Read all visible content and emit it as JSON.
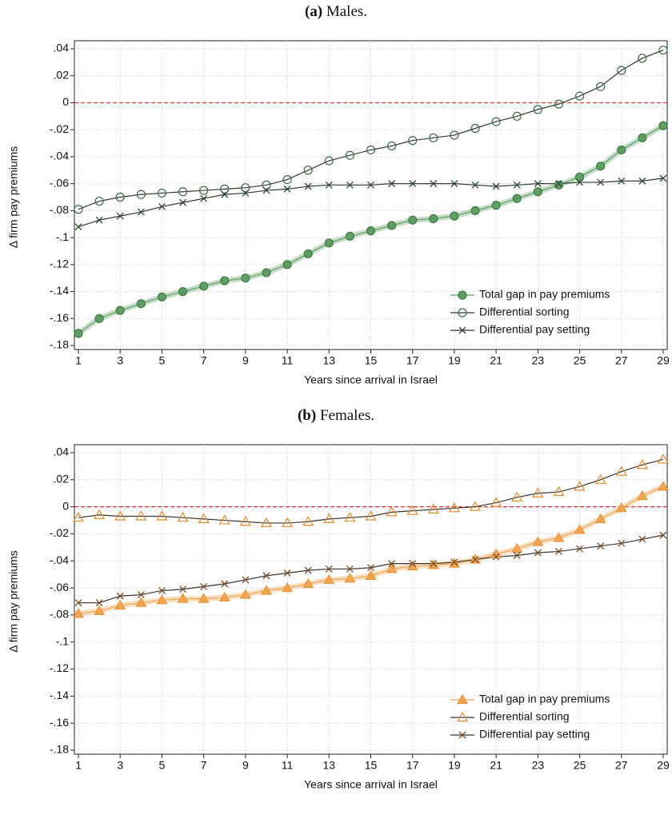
{
  "chart_data": [
    {
      "type": "line",
      "panel_label": "(a)",
      "title": "Males.",
      "x_label": "Years since arrival in Israel",
      "y_label": "Δ firm pay premiums",
      "x": [
        1,
        2,
        3,
        4,
        5,
        6,
        7,
        8,
        9,
        10,
        11,
        12,
        13,
        14,
        15,
        16,
        17,
        18,
        19,
        20,
        21,
        22,
        23,
        24,
        25,
        26,
        27,
        28,
        29
      ],
      "xlim": [
        1,
        29
      ],
      "xticks": [
        1,
        3,
        5,
        7,
        9,
        11,
        13,
        15,
        17,
        19,
        21,
        23,
        25,
        27,
        29
      ],
      "ylim": [
        -0.18,
        0.04
      ],
      "yticks": [
        {
          "value": 0.04,
          "label": ".04"
        },
        {
          "value": 0.02,
          "label": ".02"
        },
        0,
        {
          "value": -0.02,
          "label": "-.02"
        },
        {
          "value": -0.04,
          "label": "-.04"
        },
        {
          "value": -0.06,
          "label": "-.06"
        },
        {
          "value": -0.08,
          "label": "-.08"
        },
        {
          "value": -0.1,
          "label": "-.1"
        },
        {
          "value": -0.12,
          "label": "-.12"
        },
        {
          "value": -0.14,
          "label": "-.14"
        },
        {
          "value": -0.16,
          "label": "-.16"
        },
        {
          "value": -0.18,
          "label": "-.18"
        }
      ],
      "grid": true,
      "reference_line": 0,
      "reference_color": "#e0312b",
      "legend": "lower right",
      "series": [
        {
          "name": "Total gap in pay premiums",
          "color": "#5f9e63",
          "line_color": "#5f9e63",
          "marker": "circle",
          "filled": true,
          "band": true,
          "values": [
            -0.171,
            -0.16,
            -0.154,
            -0.149,
            -0.144,
            -0.14,
            -0.136,
            -0.132,
            -0.13,
            -0.126,
            -0.12,
            -0.112,
            -0.104,
            -0.099,
            -0.095,
            -0.091,
            -0.087,
            -0.086,
            -0.084,
            -0.08,
            -0.076,
            -0.071,
            -0.066,
            -0.061,
            -0.055,
            -0.047,
            -0.035,
            -0.026,
            -0.017
          ]
        },
        {
          "name": "Differential sorting",
          "color": "#3d6b40",
          "line_color": "#2f3a30",
          "marker": "circle",
          "filled": false,
          "band": false,
          "values": [
            -0.079,
            -0.073,
            -0.07,
            -0.068,
            -0.067,
            -0.066,
            -0.065,
            -0.064,
            -0.063,
            -0.061,
            -0.057,
            -0.05,
            -0.043,
            -0.039,
            -0.035,
            -0.032,
            -0.028,
            -0.026,
            -0.024,
            -0.019,
            -0.014,
            -0.01,
            -0.005,
            -0.001,
            0.005,
            0.012,
            0.024,
            0.033,
            0.039
          ]
        },
        {
          "name": "Differential pay setting",
          "color": "#2f4a33",
          "line_color": "#2f3a30",
          "marker": "x",
          "filled": false,
          "band": false,
          "values": [
            -0.092,
            -0.087,
            -0.084,
            -0.081,
            -0.077,
            -0.074,
            -0.071,
            -0.068,
            -0.067,
            -0.065,
            -0.064,
            -0.062,
            -0.061,
            -0.061,
            -0.061,
            -0.06,
            -0.06,
            -0.06,
            -0.06,
            -0.061,
            -0.062,
            -0.061,
            -0.06,
            -0.06,
            -0.059,
            -0.059,
            -0.058,
            -0.058,
            -0.056
          ]
        }
      ]
    },
    {
      "type": "line",
      "panel_label": "(b)",
      "title": "Females.",
      "x_label": "Years since arrival in Israel",
      "y_label": "Δ firm pay premiums",
      "x": [
        1,
        2,
        3,
        4,
        5,
        6,
        7,
        8,
        9,
        10,
        11,
        12,
        13,
        14,
        15,
        16,
        17,
        18,
        19,
        20,
        21,
        22,
        23,
        24,
        25,
        26,
        27,
        28,
        29
      ],
      "xlim": [
        1,
        29
      ],
      "xticks": [
        1,
        3,
        5,
        7,
        9,
        11,
        13,
        15,
        17,
        19,
        21,
        23,
        25,
        27,
        29
      ],
      "ylim": [
        -0.18,
        0.04
      ],
      "yticks": [
        {
          "value": 0.04,
          "label": ".04"
        },
        {
          "value": 0.02,
          "label": ".02"
        },
        0,
        {
          "value": -0.02,
          "label": "-.02"
        },
        {
          "value": -0.04,
          "label": "-.04"
        },
        {
          "value": -0.06,
          "label": "-.06"
        },
        {
          "value": -0.08,
          "label": "-.08"
        },
        {
          "value": -0.1,
          "label": "-.1"
        },
        {
          "value": -0.12,
          "label": "-.12"
        },
        {
          "value": -0.14,
          "label": "-.14"
        },
        {
          "value": -0.16,
          "label": "-.16"
        },
        {
          "value": -0.18,
          "label": "-.18"
        }
      ],
      "grid": true,
      "reference_line": 0,
      "reference_color": "#e0312b",
      "legend": "lower right",
      "series": [
        {
          "name": "Total gap in pay premiums",
          "color": "#f0a552",
          "line_color": "#f0a552",
          "marker": "triangle",
          "filled": true,
          "band": true,
          "values": [
            -0.079,
            -0.077,
            -0.073,
            -0.071,
            -0.069,
            -0.068,
            -0.068,
            -0.067,
            -0.065,
            -0.062,
            -0.06,
            -0.057,
            -0.054,
            -0.053,
            -0.051,
            -0.046,
            -0.044,
            -0.043,
            -0.042,
            -0.039,
            -0.035,
            -0.031,
            -0.026,
            -0.023,
            -0.017,
            -0.009,
            -0.001,
            0.008,
            0.015
          ]
        },
        {
          "name": "Differential sorting",
          "color": "#e08a2a",
          "line_color": "#3a3330",
          "marker": "triangle",
          "filled": false,
          "band": false,
          "values": [
            -0.008,
            -0.006,
            -0.007,
            -0.007,
            -0.007,
            -0.008,
            -0.009,
            -0.01,
            -0.011,
            -0.012,
            -0.012,
            -0.011,
            -0.009,
            -0.008,
            -0.007,
            -0.004,
            -0.003,
            -0.002,
            -0.001,
            0.0,
            0.003,
            0.007,
            0.01,
            0.011,
            0.015,
            0.02,
            0.026,
            0.031,
            0.035
          ]
        },
        {
          "name": "Differential pay setting",
          "color": "#7a4a22",
          "line_color": "#3a3330",
          "marker": "x",
          "filled": false,
          "band": false,
          "values": [
            -0.071,
            -0.071,
            -0.066,
            -0.065,
            -0.062,
            -0.061,
            -0.059,
            -0.057,
            -0.054,
            -0.051,
            -0.049,
            -0.047,
            -0.046,
            -0.046,
            -0.045,
            -0.042,
            -0.042,
            -0.042,
            -0.041,
            -0.039,
            -0.037,
            -0.036,
            -0.034,
            -0.033,
            -0.031,
            -0.029,
            -0.027,
            -0.024,
            -0.021
          ]
        }
      ]
    }
  ]
}
